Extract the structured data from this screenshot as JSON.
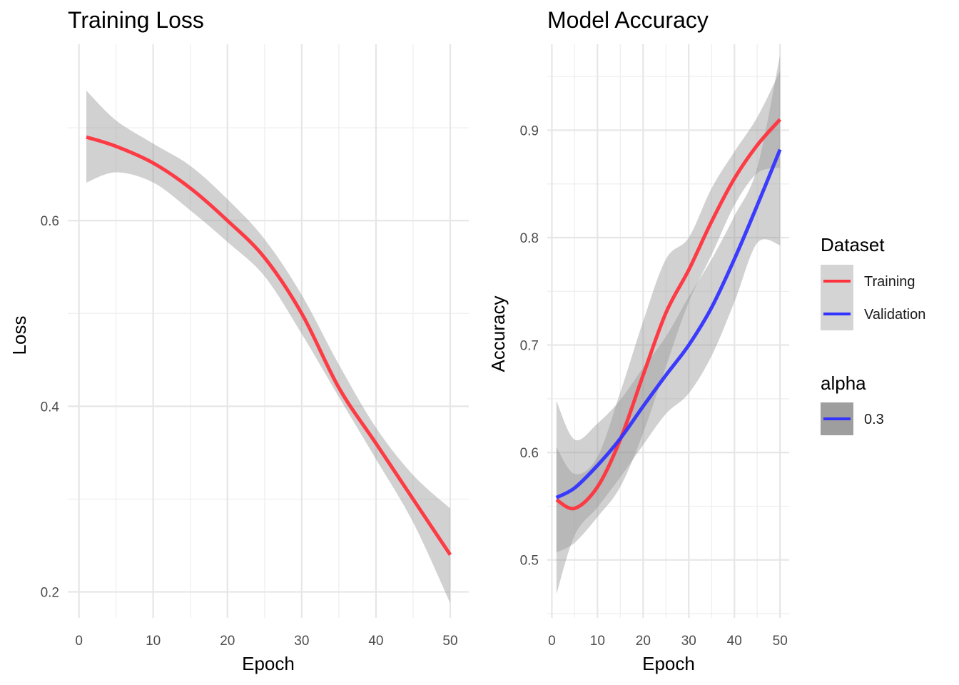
{
  "chart_data": [
    {
      "type": "line",
      "title": "Training Loss",
      "xlabel": "Epoch",
      "ylabel": "Loss",
      "xlim": [
        -1.5,
        52.5
      ],
      "ylim": [
        0.172,
        0.79
      ],
      "x_ticks": [
        0,
        10,
        20,
        30,
        40,
        50
      ],
      "x_tick_labels": [
        "0",
        "10",
        "20",
        "30",
        "40",
        "50"
      ],
      "y_ticks": [
        0.2,
        0.4,
        0.6
      ],
      "y_tick_labels": [
        "0.2",
        "0.4",
        "0.6"
      ],
      "grid": true,
      "series": [
        {
          "color": "#ff333d",
          "x": [
            1,
            5,
            10,
            15,
            20,
            25,
            30,
            35,
            40,
            45,
            50
          ],
          "y": [
            0.69,
            0.68,
            0.662,
            0.635,
            0.6,
            0.56,
            0.5,
            0.42,
            0.36,
            0.3,
            0.24
          ],
          "ribbon_lower": [
            0.641,
            0.652,
            0.641,
            0.611,
            0.577,
            0.54,
            0.478,
            0.41,
            0.343,
            0.275,
            0.188
          ],
          "ribbon_upper": [
            0.74,
            0.708,
            0.683,
            0.659,
            0.623,
            0.58,
            0.52,
            0.445,
            0.377,
            0.326,
            0.29
          ]
        }
      ]
    },
    {
      "type": "line",
      "title": "Model Accuracy",
      "xlabel": "Epoch",
      "ylabel": "Accuracy",
      "xlim": [
        -1.0,
        52.0
      ],
      "ylim": [
        0.446,
        0.98
      ],
      "x_ticks": [
        0,
        10,
        20,
        30,
        40,
        50
      ],
      "x_tick_labels": [
        "0",
        "10",
        "20",
        "30",
        "40",
        "50"
      ],
      "y_ticks": [
        0.5,
        0.6,
        0.7,
        0.8,
        0.9
      ],
      "y_tick_labels": [
        "0.5",
        "0.6",
        "0.7",
        "0.8",
        "0.9"
      ],
      "grid": true,
      "series": [
        {
          "name": "Training",
          "color": "#ff333d",
          "x": [
            1,
            5,
            10,
            15,
            20,
            25,
            30,
            35,
            40,
            45,
            50
          ],
          "y": [
            0.556,
            0.548,
            0.568,
            0.612,
            0.672,
            0.73,
            0.77,
            0.815,
            0.855,
            0.886,
            0.91
          ],
          "ribbon_lower": [
            0.507,
            0.516,
            0.54,
            0.568,
            0.618,
            0.68,
            0.74,
            0.784,
            0.83,
            0.86,
            0.865
          ],
          "ribbon_upper": [
            0.605,
            0.58,
            0.596,
            0.656,
            0.722,
            0.78,
            0.8,
            0.846,
            0.88,
            0.912,
            0.955
          ]
        },
        {
          "name": "Validation",
          "color": "#3333ff",
          "x": [
            1,
            5,
            10,
            15,
            20,
            25,
            30,
            35,
            40,
            45,
            50
          ],
          "y": [
            0.558,
            0.567,
            0.588,
            0.613,
            0.643,
            0.672,
            0.7,
            0.735,
            0.78,
            0.83,
            0.882
          ],
          "ribbon_lower": [
            0.468,
            0.523,
            0.549,
            0.577,
            0.607,
            0.636,
            0.655,
            0.69,
            0.74,
            0.795,
            0.793
          ],
          "ribbon_upper": [
            0.648,
            0.612,
            0.627,
            0.649,
            0.679,
            0.708,
            0.745,
            0.78,
            0.82,
            0.865,
            0.97
          ]
        }
      ]
    }
  ],
  "legend": {
    "dataset": {
      "title": "Dataset",
      "items": [
        {
          "label": "Training",
          "color": "#ff333d"
        },
        {
          "label": "Validation",
          "color": "#3333ff"
        }
      ]
    },
    "alpha": {
      "title": "alpha",
      "items": [
        {
          "label": "0.3",
          "color": "#3333ff"
        }
      ]
    }
  },
  "colors": {
    "ribbon_fill": "#999999",
    "legend_key_bg": "#d4d4d4",
    "alpha_key_bg": "#9e9e9e"
  }
}
